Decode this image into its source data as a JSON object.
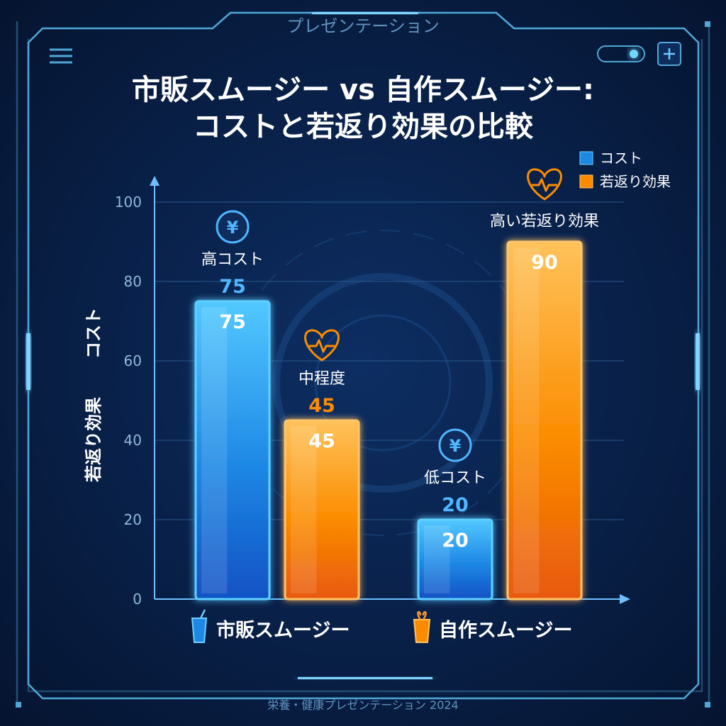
{
  "header": {
    "top_label": "プレゼンテーション",
    "title_line1": "市販スムージー vs 自作スムージー:",
    "title_line2": "コストと若返り効果の比較"
  },
  "footer": {
    "text": "栄養・健康プレゼンテーション 2024"
  },
  "toolbar": {
    "menu_icon": "hamburger-menu-icon",
    "toggle_icon": "toggle-switch-icon",
    "add_icon": "plus-icon"
  },
  "colors": {
    "background": "#071a3a",
    "cost": "#1e88e5",
    "rejuvenation": "#fb8c00",
    "frame": "#4fa8d8"
  },
  "chart_data": {
    "type": "bar",
    "categories": [
      "市販スムージー",
      "自作スムージー"
    ],
    "series": [
      {
        "name": "コスト",
        "values": [
          75,
          20
        ]
      },
      {
        "name": "若返り効果",
        "values": [
          45,
          90
        ]
      }
    ],
    "ylim": [
      0,
      100
    ],
    "yticks": [
      0,
      20,
      40,
      60,
      80,
      100
    ],
    "ylabel_cost": "コスト",
    "ylabel_effect": "若返り効果",
    "grid": true,
    "legend_position": "top-right",
    "annotations": [
      {
        "category": 0,
        "series": 0,
        "label": "高コスト",
        "value": "75",
        "icon": "yen-icon"
      },
      {
        "category": 0,
        "series": 1,
        "label": "中程度",
        "value": "45",
        "icon": "heart-pulse-icon"
      },
      {
        "category": 1,
        "series": 0,
        "label": "低コスト",
        "value": "20",
        "icon": "yen-icon"
      },
      {
        "category": 1,
        "series": 1,
        "label": "高い若返り効果",
        "value": "",
        "icon": "heart-pulse-icon"
      }
    ],
    "category_icons": [
      "cup-straw-icon",
      "juice-glass-icon"
    ]
  }
}
